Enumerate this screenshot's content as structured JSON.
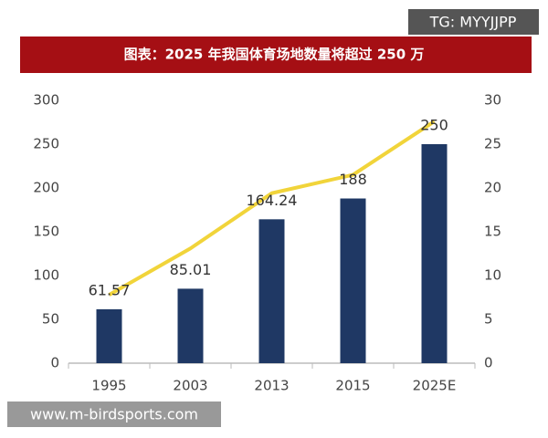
{
  "chart_data": {
    "type": "bar",
    "title": "图表：2025 年我国体育场地数量将超过 250 万",
    "categories": [
      "1995",
      "2003",
      "2013",
      "2015",
      "2025E"
    ],
    "series": [
      {
        "type": "bar",
        "color": "#1f3864",
        "values": [
          61.57,
          85.01,
          164.24,
          188,
          250
        ]
      },
      {
        "type": "line",
        "axis": "y2",
        "color": "#f1d43a",
        "values": [
          7.8,
          13.1,
          19.4,
          21.5,
          27.6
        ]
      }
    ],
    "ylim": [
      0,
      300
    ],
    "yticks": [
      0,
      50,
      100,
      150,
      200,
      250,
      300
    ],
    "y2lim": [
      0,
      30
    ],
    "y2ticks": [
      0,
      5,
      10,
      15,
      20,
      25,
      30
    ],
    "grid": false
  },
  "watermarks": {
    "top": "TG: MYYJJPP",
    "bottom": "www.m-birdsports.com"
  }
}
